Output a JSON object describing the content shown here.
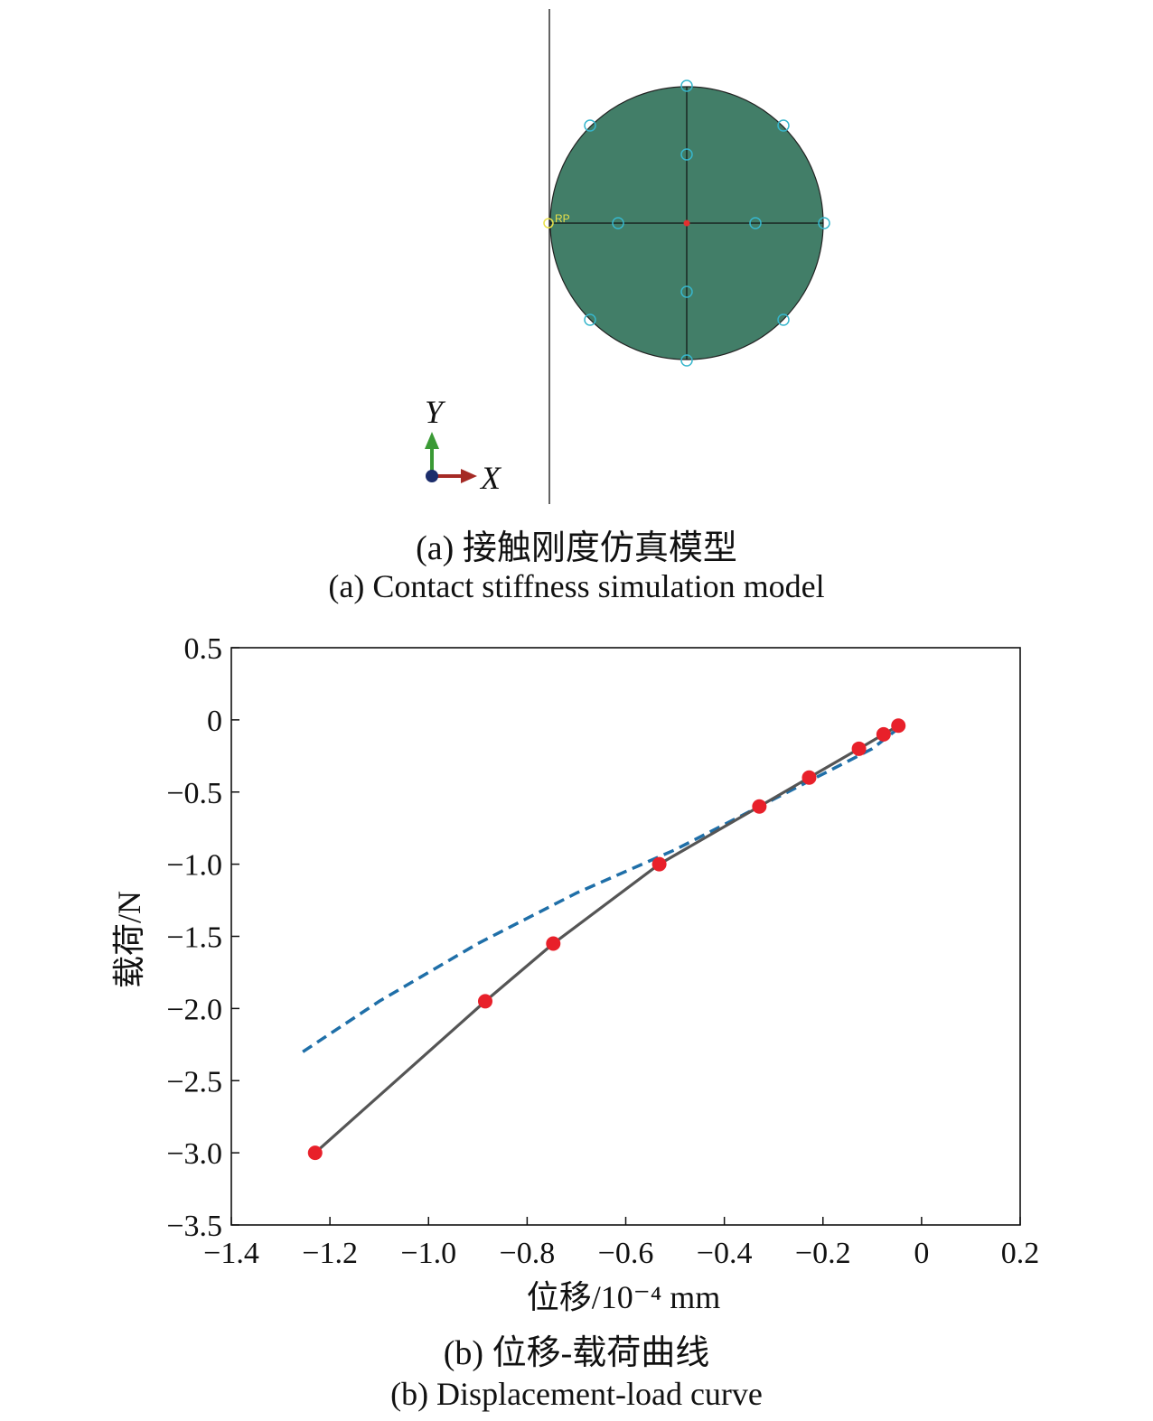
{
  "model": {
    "rp_label": "RP",
    "axis_y_label": "Y",
    "axis_x_label": "X",
    "circle_fill": "#427e68",
    "seed_color": "#37b6cc",
    "rp_color": "#e8e04a",
    "center_color": "#e23030"
  },
  "captions": {
    "a_cn": "(a) 接触刚度仿真模型",
    "a_en": "(a) Contact stiffness simulation model",
    "b_cn": "(b) 位移-载荷曲线",
    "b_en": "(b) Displacement-load curve"
  },
  "chart_data": {
    "type": "line",
    "xlabel": "位移/10⁻⁴ mm",
    "ylabel": "载荷/N",
    "xlim": [
      -1.4,
      0.2
    ],
    "ylim": [
      -3.5,
      0.5
    ],
    "xticks": [
      -1.4,
      -1.2,
      -1.0,
      -0.8,
      -0.6,
      -0.4,
      -0.2,
      0,
      0.2
    ],
    "yticks": [
      0.5,
      0,
      -0.5,
      -1.0,
      -1.5,
      -2.0,
      -2.5,
      -3.0,
      -3.5
    ],
    "xtick_labels": [
      "−1.4",
      "−1.2",
      "−1.0",
      "−0.8",
      "−0.6",
      "−0.4",
      "−0.2",
      "0",
      "0.2"
    ],
    "ytick_labels": [
      "0.5",
      "0",
      "−0.5",
      "−1.0",
      "−1.5",
      "−2.0",
      "−2.5",
      "−3.0",
      "−3.5"
    ],
    "grid": false,
    "series": [
      {
        "style": "solid line with markers",
        "line_color": "#555555",
        "marker_color": "#e8202a",
        "x": [
          -1.23,
          -0.885,
          -0.747,
          -0.532,
          -0.329,
          -0.228,
          -0.127,
          -0.077,
          -0.047
        ],
        "y": [
          -3.0,
          -1.95,
          -1.55,
          -1.0,
          -0.6,
          -0.4,
          -0.2,
          -0.1,
          -0.04
        ]
      },
      {
        "style": "dashed line",
        "line_color": "#1f6fa8",
        "x": [
          -1.255,
          -1.1,
          -0.9,
          -0.7,
          -0.5,
          -0.3,
          -0.1,
          -0.04
        ],
        "y": [
          -2.3,
          -1.95,
          -1.55,
          -1.2,
          -0.9,
          -0.55,
          -0.2,
          -0.04
        ]
      }
    ]
  }
}
